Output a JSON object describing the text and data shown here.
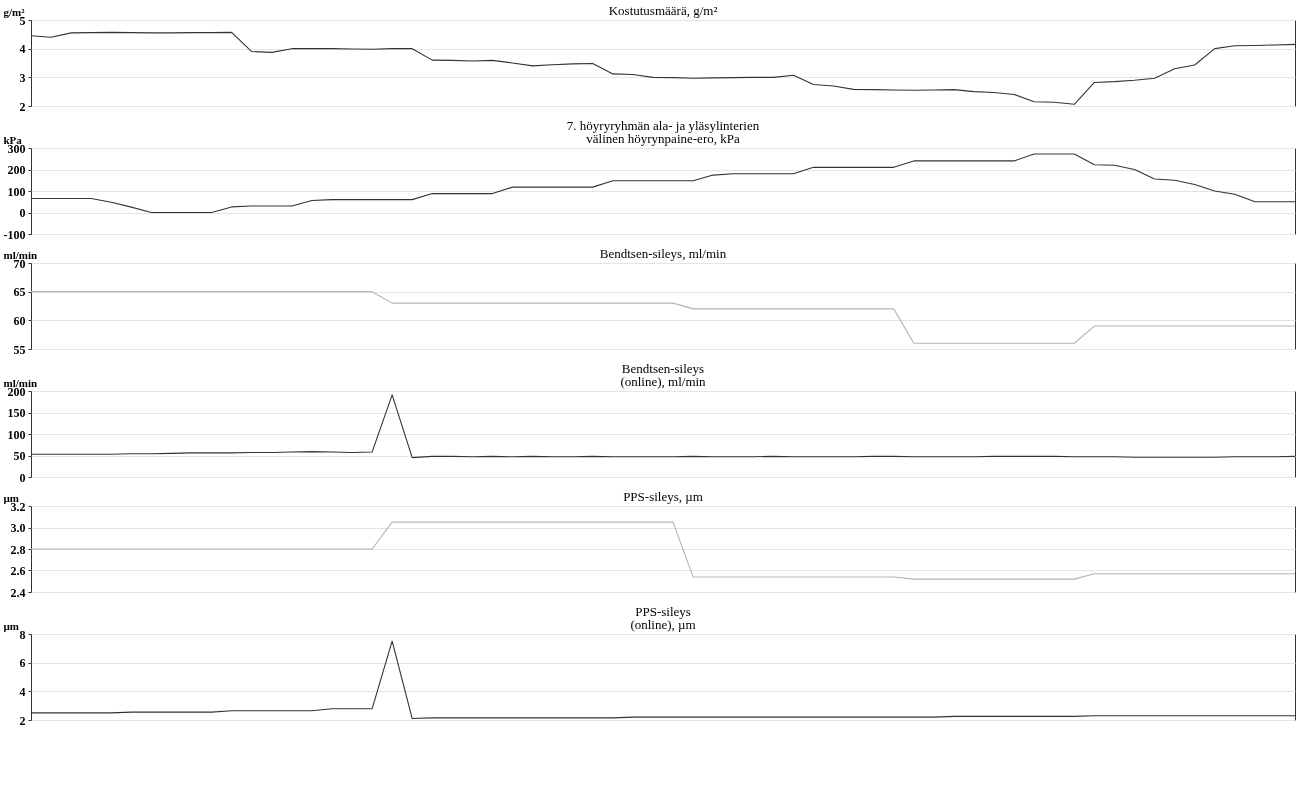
{
  "chart_data": [
    {
      "type": "line",
      "title": "Kostutusmäärä, g/m²",
      "ylabel": "g/m²",
      "categories": [
        null,
        null,
        null,
        null,
        null,
        null,
        null,
        null,
        null,
        null,
        null,
        null,
        null,
        null,
        null,
        null,
        null,
        null,
        null,
        null,
        null,
        null,
        null,
        null,
        null,
        null,
        null,
        null,
        null,
        null,
        null,
        null,
        null,
        null,
        null,
        null,
        null,
        null,
        null,
        null,
        null,
        null,
        null,
        null,
        null,
        null,
        null,
        null,
        null,
        null,
        null,
        null,
        null,
        null,
        null,
        null,
        null,
        null,
        null,
        null,
        null,
        null,
        null,
        null
      ],
      "ylim": [
        2,
        5
      ],
      "yticks": [
        2,
        3,
        4,
        5
      ],
      "grid": "y",
      "tick_labels": "y",
      "series": [
        {
          "color": "#333333",
          "values": [
            4.45,
            4.4,
            4.55,
            4.56,
            4.57,
            4.56,
            4.55,
            4.55,
            4.56,
            4.56,
            4.57,
            3.9,
            3.87,
            4.0,
            4.0,
            4.0,
            3.99,
            3.98,
            4.0,
            4.0,
            3.6,
            3.59,
            3.57,
            3.59,
            3.5,
            3.4,
            3.44,
            3.47,
            3.48,
            3.12,
            3.1,
            3.0,
            2.99,
            2.97,
            2.98,
            2.99,
            3.0,
            3.0,
            3.07,
            2.75,
            2.7,
            2.58,
            2.57,
            2.56,
            2.55,
            2.56,
            2.57,
            2.5,
            2.47,
            2.4,
            2.15,
            2.13,
            2.06,
            2.82,
            2.85,
            2.9,
            2.97,
            3.3,
            3.43,
            4.0,
            4.1,
            4.11,
            4.13,
            4.15
          ]
        }
      ]
    },
    {
      "type": "line",
      "title": "7. höyryryhmän ala- ja yläsylinterien\nvälinen höyrynpaine-ero, kPa",
      "ylabel": "kPa",
      "categories": [
        null,
        null,
        null,
        null,
        null,
        null,
        null,
        null,
        null,
        null,
        null,
        null,
        null,
        null,
        null,
        null,
        null,
        null,
        null,
        null,
        null,
        null,
        null,
        null,
        null,
        null,
        null,
        null,
        null,
        null,
        null,
        null,
        null,
        null,
        null,
        null,
        null,
        null,
        null,
        null,
        null,
        null,
        null,
        null,
        null,
        null,
        null,
        null,
        null,
        null,
        null,
        null,
        null,
        null,
        null,
        null,
        null,
        null,
        null,
        null,
        null,
        null,
        null,
        null
      ],
      "ylim": [
        -100,
        300
      ],
      "yticks": [
        -100,
        0,
        100,
        200,
        300
      ],
      "grid": "y",
      "tick_labels": "y",
      "series": [
        {
          "color": "#333333",
          "values": [
            65,
            65,
            65,
            65,
            48,
            25,
            0,
            0,
            0,
            0,
            26,
            30,
            30,
            30,
            56,
            60,
            60,
            60,
            60,
            60,
            88,
            88,
            88,
            88,
            118,
            118,
            118,
            118,
            118,
            148,
            148,
            148,
            148,
            148,
            174,
            180,
            180,
            180,
            180,
            210,
            210,
            210,
            210,
            210,
            240,
            240,
            240,
            240,
            240,
            240,
            272,
            272,
            272,
            222,
            220,
            200,
            156,
            150,
            130,
            100,
            85,
            50,
            50,
            50
          ]
        }
      ]
    },
    {
      "type": "line",
      "title": "Bendtsen-sileys, ml/min",
      "ylabel": "ml/min",
      "categories": [
        null,
        null,
        null,
        null,
        null,
        null,
        null,
        null,
        null,
        null,
        null,
        null,
        null,
        null,
        null,
        null,
        null,
        null,
        null,
        null,
        null,
        null,
        null,
        null,
        null,
        null,
        null,
        null,
        null,
        null,
        null,
        null,
        null,
        null,
        null,
        null,
        null,
        null,
        null,
        null,
        null,
        null,
        null,
        null,
        null,
        null,
        null,
        null,
        null,
        null,
        null,
        null,
        null,
        null,
        null,
        null,
        null,
        null,
        null,
        null,
        null,
        null,
        null,
        null
      ],
      "ylim": [
        55,
        70
      ],
      "yticks": [
        55,
        60,
        65,
        70
      ],
      "grid": "y",
      "tick_labels": "y",
      "series": [
        {
          "color": "#b4b4b4",
          "values": [
            65,
            65,
            65,
            65,
            65,
            65,
            65,
            65,
            65,
            65,
            65,
            65,
            65,
            65,
            65,
            65,
            65,
            65,
            63,
            63,
            63,
            63,
            63,
            63,
            63,
            63,
            63,
            63,
            63,
            63,
            63,
            63,
            63,
            62,
            62,
            62,
            62,
            62,
            62,
            62,
            62,
            62,
            62,
            62,
            56,
            56,
            56,
            56,
            56,
            56,
            56,
            56,
            56,
            59,
            59,
            59,
            59,
            59,
            59,
            59,
            59,
            59,
            59,
            59
          ]
        }
      ]
    },
    {
      "type": "line",
      "title": "Bendtsen-sileys\n(online), ml/min",
      "ylabel": "ml/min",
      "categories": [
        null,
        null,
        null,
        null,
        null,
        null,
        null,
        null,
        null,
        null,
        null,
        null,
        null,
        null,
        null,
        null,
        null,
        null,
        null,
        null,
        null,
        null,
        null,
        null,
        null,
        null,
        null,
        null,
        null,
        null,
        null,
        null,
        null,
        null,
        null,
        null,
        null,
        null,
        null,
        null,
        null,
        null,
        null,
        null,
        null,
        null,
        null,
        null,
        null,
        null,
        null,
        null,
        null,
        null,
        null,
        null,
        null,
        null,
        null,
        null,
        null,
        null,
        null,
        null
      ],
      "ylim": [
        0,
        200
      ],
      "yticks": [
        0,
        50,
        100,
        150,
        200
      ],
      "grid": "y",
      "tick_labels": "y",
      "series": [
        {
          "color": "#333333",
          "values": [
            53,
            53,
            53,
            53,
            53,
            54,
            54,
            55,
            56,
            56,
            56,
            57,
            57,
            58,
            59,
            58,
            57,
            58,
            191,
            45,
            48,
            48,
            47,
            48,
            47,
            48,
            47,
            47,
            48,
            47,
            47,
            47,
            47,
            48,
            47,
            47,
            47,
            48,
            47,
            47,
            47,
            47,
            48,
            48,
            47,
            47,
            47,
            47,
            48,
            48,
            48,
            48,
            47,
            47,
            47,
            46,
            46,
            46,
            46,
            46,
            47,
            47,
            47,
            48
          ]
        }
      ]
    },
    {
      "type": "line",
      "title": "PPS-sileys, µm",
      "ylabel": "µm",
      "categories": [
        null,
        null,
        null,
        null,
        null,
        null,
        null,
        null,
        null,
        null,
        null,
        null,
        null,
        null,
        null,
        null,
        null,
        null,
        null,
        null,
        null,
        null,
        null,
        null,
        null,
        null,
        null,
        null,
        null,
        null,
        null,
        null,
        null,
        null,
        null,
        null,
        null,
        null,
        null,
        null,
        null,
        null,
        null,
        null,
        null,
        null,
        null,
        null,
        null,
        null,
        null,
        null,
        null,
        null,
        null,
        null,
        null,
        null,
        null,
        null,
        null,
        null,
        null,
        null
      ],
      "ylim": [
        2.4,
        3.2
      ],
      "yticks": [
        2.4,
        2.6,
        2.8,
        {
          "value": 3,
          "label": "3.0"
        },
        3.2
      ],
      "grid": "y",
      "tick_labels": "y",
      "series": [
        {
          "color": "#b4b4b4",
          "values": [
            2.8,
            2.8,
            2.8,
            2.8,
            2.8,
            2.8,
            2.8,
            2.8,
            2.8,
            2.8,
            2.8,
            2.8,
            2.8,
            2.8,
            2.8,
            2.8,
            2.8,
            2.8,
            3.05,
            3.05,
            3.05,
            3.05,
            3.05,
            3.05,
            3.05,
            3.05,
            3.05,
            3.05,
            3.05,
            3.05,
            3.05,
            3.05,
            3.05,
            2.54,
            2.54,
            2.54,
            2.54,
            2.54,
            2.54,
            2.54,
            2.54,
            2.54,
            2.54,
            2.54,
            2.52,
            2.52,
            2.52,
            2.52,
            2.52,
            2.52,
            2.52,
            2.52,
            2.52,
            2.57,
            2.57,
            2.57,
            2.57,
            2.57,
            2.57,
            2.57,
            2.57,
            2.57,
            2.57,
            2.57
          ]
        }
      ]
    },
    {
      "type": "line",
      "title": "PPS-sileys\n(online), µm",
      "ylabel": "µm",
      "categories": [
        null,
        null,
        null,
        null,
        null,
        null,
        null,
        null,
        null,
        null,
        null,
        null,
        null,
        null,
        null,
        null,
        null,
        null,
        null,
        null,
        null,
        null,
        null,
        null,
        null,
        null,
        null,
        null,
        null,
        null,
        null,
        null,
        null,
        null,
        null,
        null,
        null,
        null,
        null,
        null,
        null,
        null,
        null,
        null,
        null,
        null,
        null,
        null,
        null,
        null,
        null,
        null,
        null,
        null,
        null,
        null,
        null,
        null,
        null,
        null,
        null,
        null,
        null,
        null
      ],
      "ylim": [
        2,
        8
      ],
      "yticks": [
        2,
        4,
        6,
        8
      ],
      "grid": "y",
      "tick_labels": "y",
      "series": [
        {
          "color": "#333333",
          "values": [
            2.5,
            2.5,
            2.5,
            2.5,
            2.5,
            2.55,
            2.55,
            2.55,
            2.55,
            2.55,
            2.65,
            2.65,
            2.65,
            2.65,
            2.65,
            2.78,
            2.78,
            2.78,
            7.5,
            2.1,
            2.15,
            2.15,
            2.15,
            2.15,
            2.15,
            2.15,
            2.15,
            2.15,
            2.15,
            2.15,
            2.2,
            2.2,
            2.2,
            2.2,
            2.2,
            2.2,
            2.2,
            2.2,
            2.2,
            2.2,
            2.2,
            2.2,
            2.2,
            2.2,
            2.2,
            2.2,
            2.25,
            2.25,
            2.25,
            2.25,
            2.25,
            2.25,
            2.25,
            2.3,
            2.3,
            2.3,
            2.3,
            2.3,
            2.3,
            2.3,
            2.3,
            2.3,
            2.3,
            2.3
          ]
        }
      ]
    }
  ]
}
